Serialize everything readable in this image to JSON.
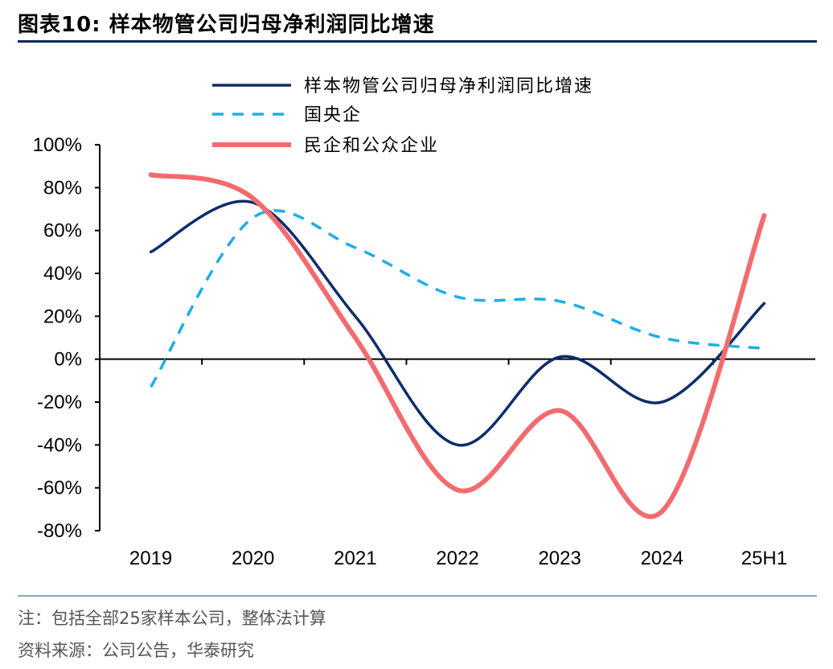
{
  "title": "图表10:  样本物管公司归母净利润同比增速",
  "note": "注：包括全部25家样本公司，整体法计算",
  "source": "资料来源：公司公告，华泰研究",
  "chart_data": {
    "type": "line",
    "categories": [
      "2019",
      "2020",
      "2021",
      "2022",
      "2023",
      "2024",
      "25H1"
    ],
    "ylim": [
      -80,
      100
    ],
    "yticks": [
      -80,
      -60,
      -40,
      -20,
      0,
      20,
      40,
      60,
      80,
      100
    ],
    "ytick_labels": [
      "-80%",
      "-60%",
      "-40%",
      "-20%",
      "0%",
      "20%",
      "40%",
      "60%",
      "80%",
      "100%"
    ],
    "legend_position": "top-center",
    "series": [
      {
        "name": "样本物管公司归母净利润同比增速",
        "color": "#0c2d6b",
        "dash": "solid",
        "values": [
          50,
          73,
          20,
          -40,
          1,
          -20,
          26
        ]
      },
      {
        "name": "国央企",
        "color": "#1eaee8",
        "dash": "dashed",
        "values": [
          -13,
          66,
          52,
          29,
          27,
          10,
          5
        ]
      },
      {
        "name": "民企和公众企业",
        "color": "#f26b6e",
        "dash": "solid",
        "values": [
          86,
          75,
          10,
          -61,
          -24,
          -71,
          67
        ]
      }
    ]
  }
}
